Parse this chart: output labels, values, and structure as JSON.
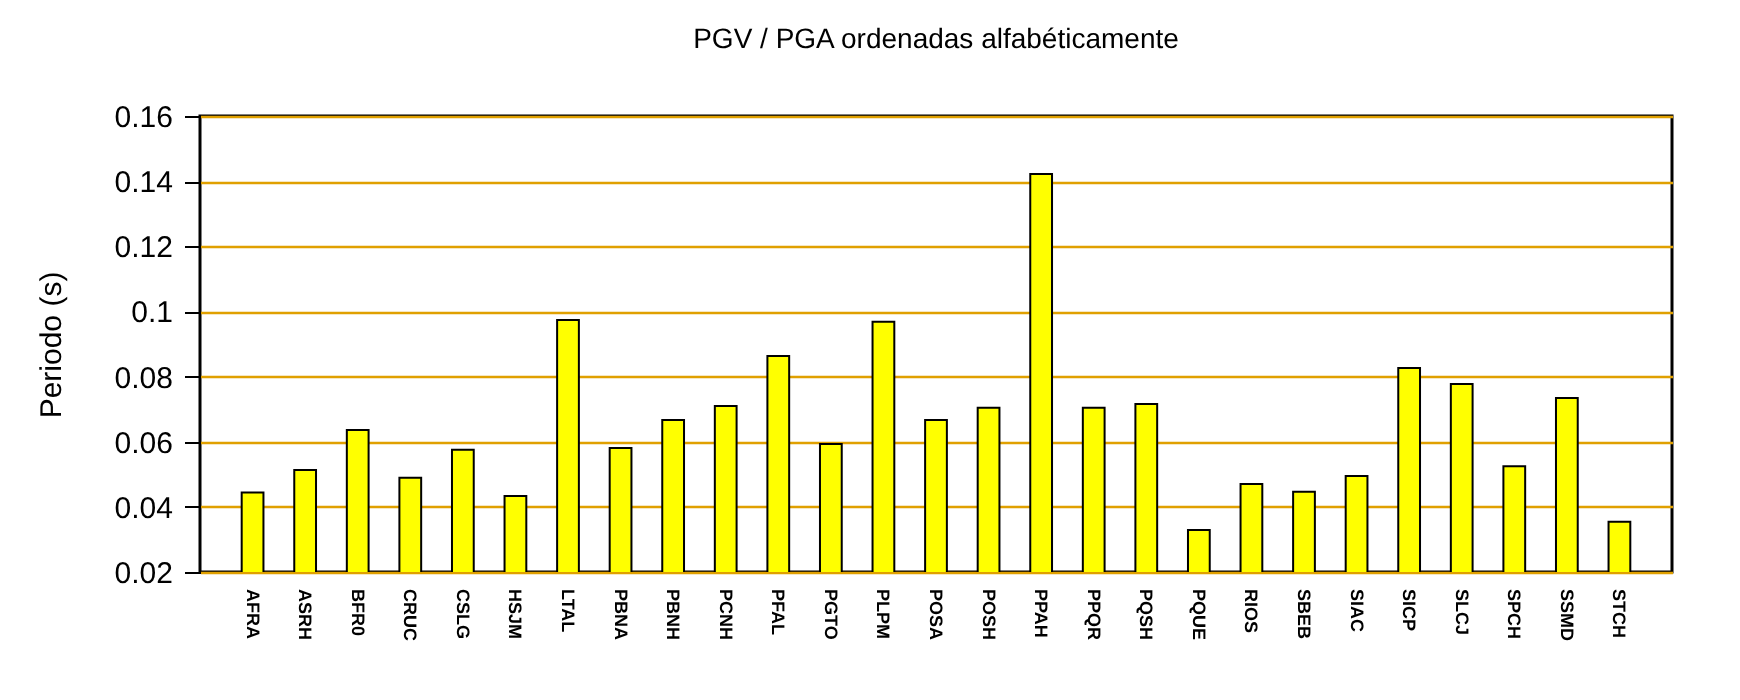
{
  "chart_data": {
    "type": "bar",
    "title": "PGV / PGA ordenadas alfabéticamente",
    "ylabel": "Periodo (s)",
    "categories": [
      "AFRA",
      "ASRH",
      "BFR0",
      "CRUC",
      "CSLG",
      "HSJM",
      "LTAL",
      "PBNA",
      "PBNH",
      "PCNH",
      "PFAL",
      "PGTO",
      "PLPM",
      "POSA",
      "POSH",
      "PPAH",
      "PPQR",
      "PQSH",
      "PQUE",
      "RIOS",
      "SBEB",
      "SIAC",
      "SICP",
      "SLCJ",
      "SPCH",
      "SSMD",
      "STCH"
    ],
    "values": [
      0.0444,
      0.0513,
      0.0636,
      0.0489,
      0.0575,
      0.0433,
      0.0974,
      0.0581,
      0.0667,
      0.071,
      0.0863,
      0.0593,
      0.0968,
      0.0667,
      0.0704,
      0.1422,
      0.0704,
      0.0716,
      0.0329,
      0.047,
      0.0446,
      0.0495,
      0.0826,
      0.0777,
      0.0525,
      0.0734,
      0.0354
    ],
    "color": "#ffff00",
    "ylim": [
      0.02,
      0.16
    ],
    "yticks": [
      0.02,
      0.04,
      0.06,
      0.08,
      {
        "value": 0.1,
        "label": "0.1"
      },
      0.12,
      0.14,
      0.16
    ],
    "grid": "y"
  }
}
